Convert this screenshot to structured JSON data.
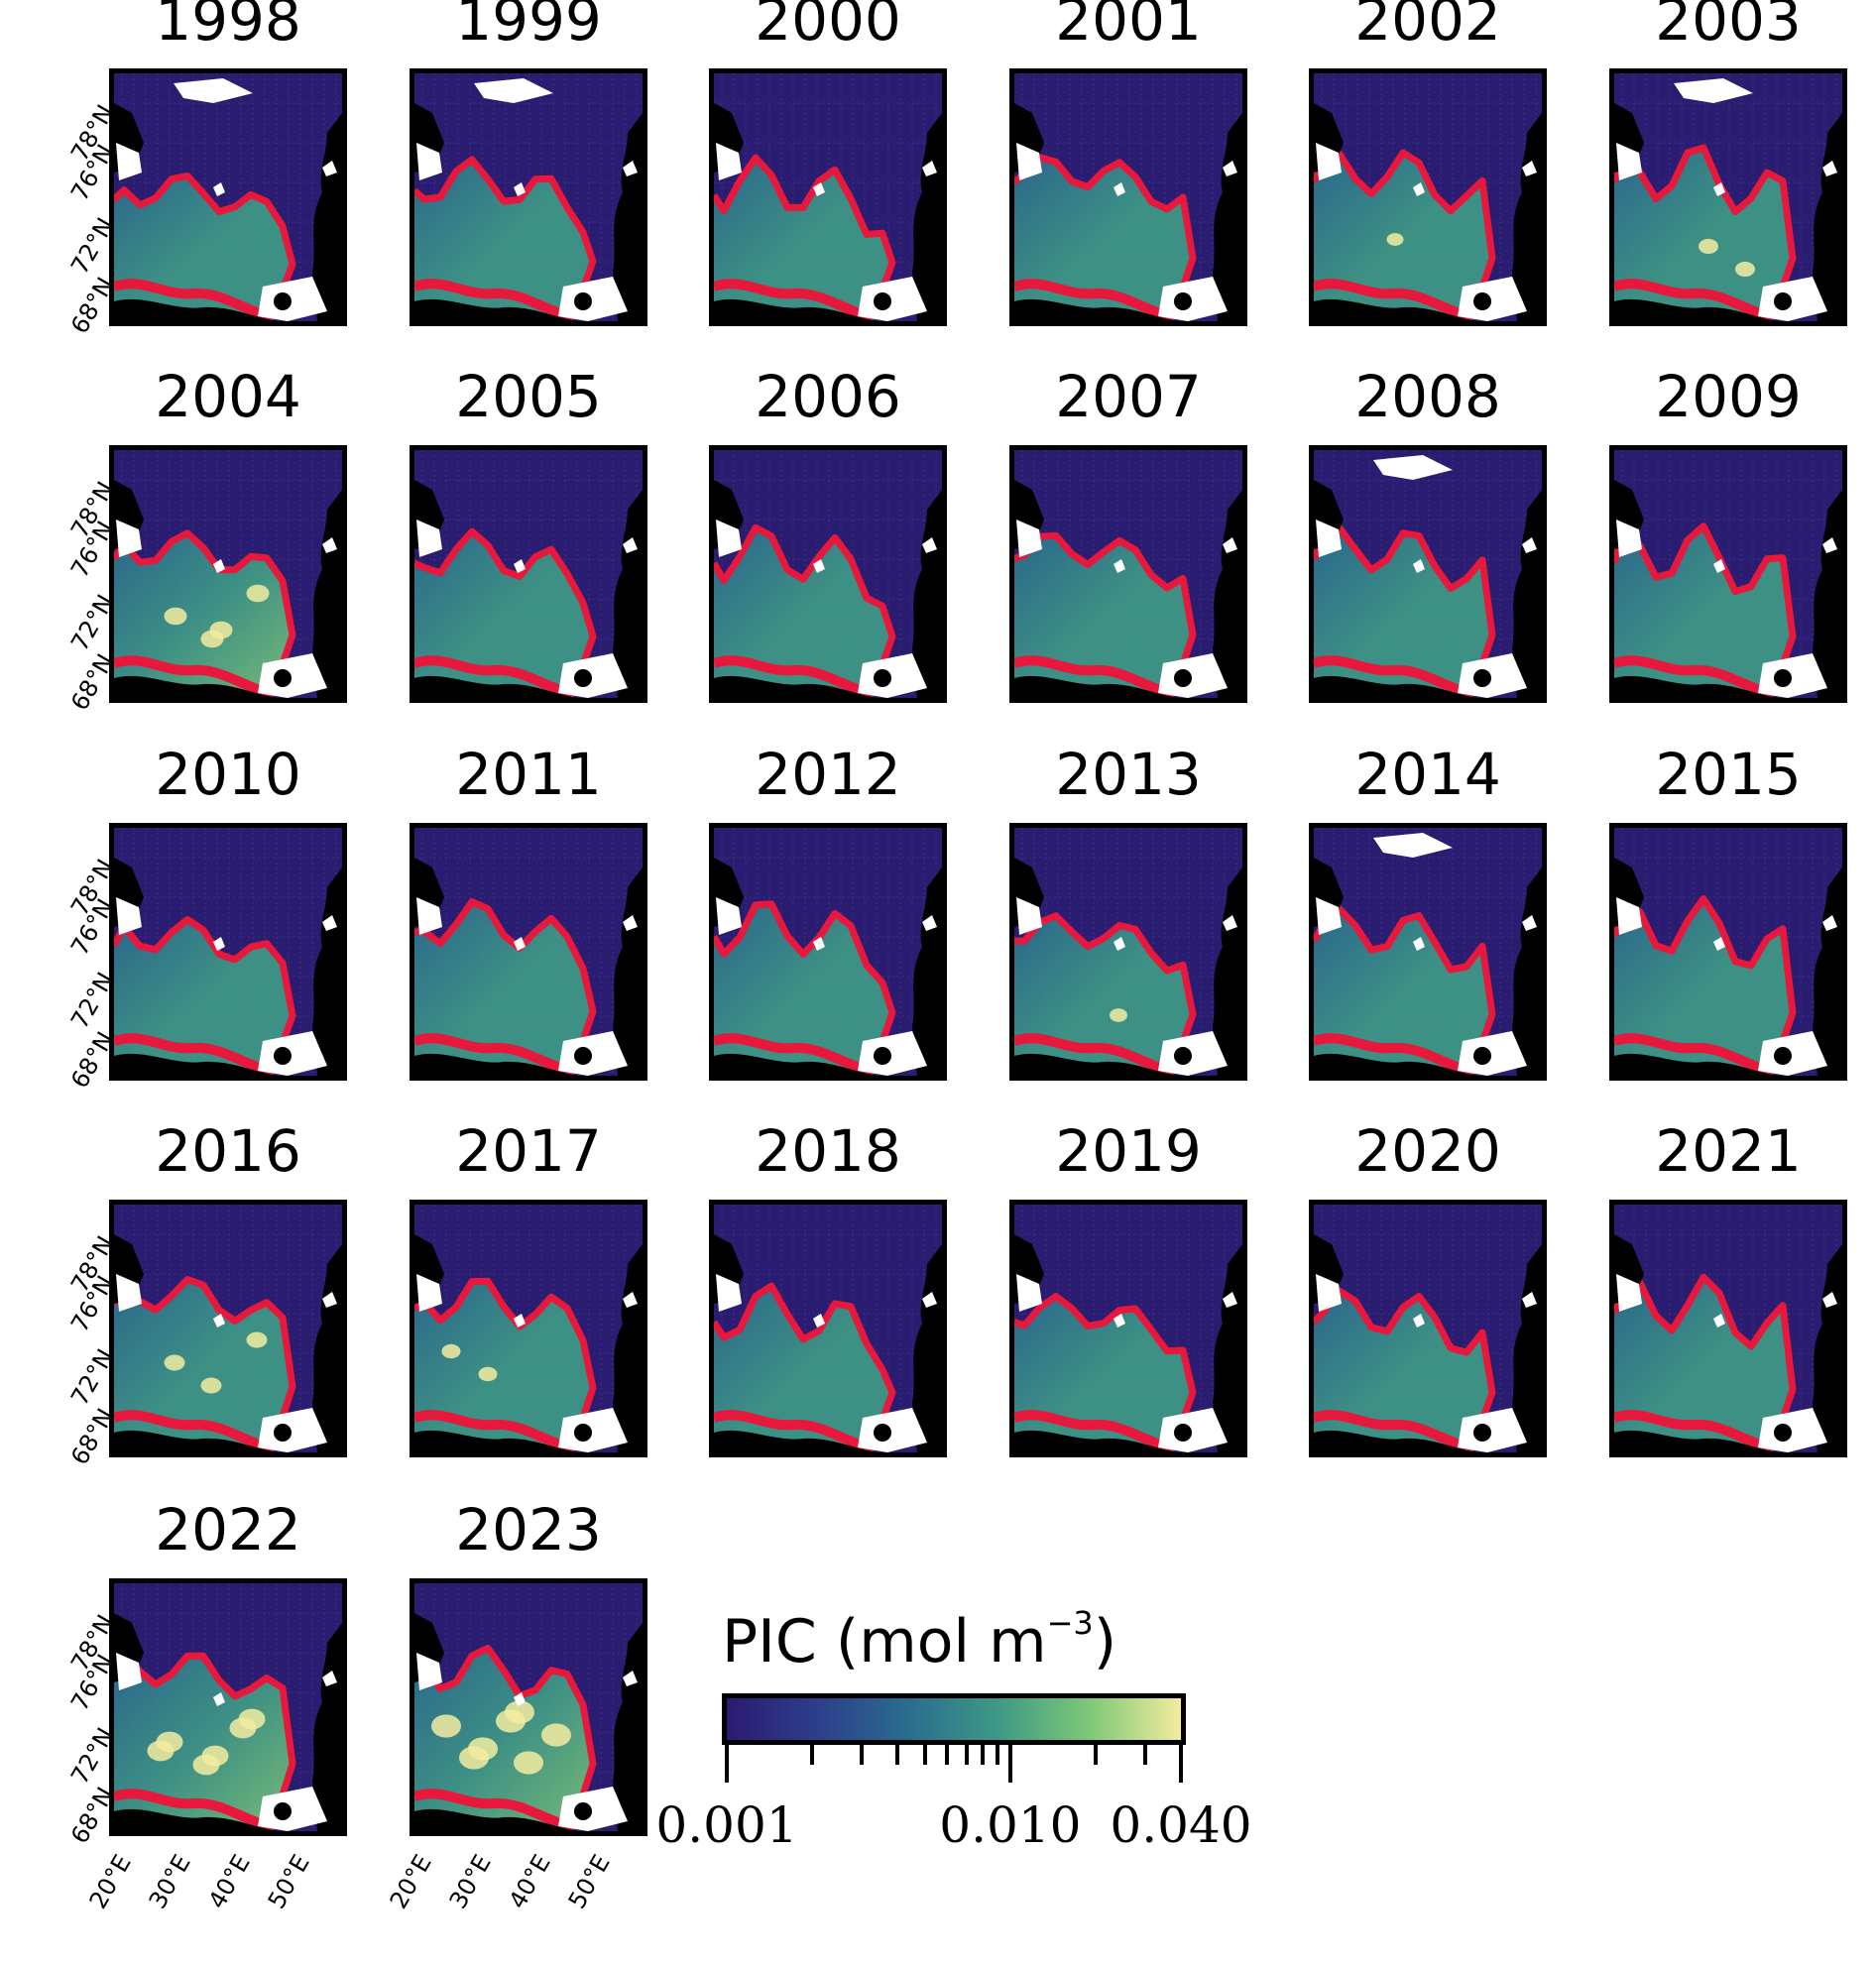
{
  "panels": [
    {
      "year": "1998",
      "bloom": 0.25,
      "bright": 0.0
    },
    {
      "year": "1999",
      "bloom": 0.35,
      "bright": 0.0
    },
    {
      "year": "2000",
      "bloom": 0.3,
      "bright": 0.0
    },
    {
      "year": "2001",
      "bloom": 0.45,
      "bright": 0.0
    },
    {
      "year": "2002",
      "bloom": 0.45,
      "bright": 0.05
    },
    {
      "year": "2003",
      "bloom": 0.45,
      "bright": 0.2
    },
    {
      "year": "2004",
      "bloom": 0.45,
      "bright": 0.35
    },
    {
      "year": "2005",
      "bloom": 0.4,
      "bright": 0.0
    },
    {
      "year": "2006",
      "bloom": 0.4,
      "bright": 0.0
    },
    {
      "year": "2007",
      "bloom": 0.45,
      "bright": 0.0
    },
    {
      "year": "2008",
      "bloom": 0.45,
      "bright": 0.0
    },
    {
      "year": "2009",
      "bloom": 0.4,
      "bright": 0.0
    },
    {
      "year": "2010",
      "bloom": 0.35,
      "bright": 0.0
    },
    {
      "year": "2011",
      "bloom": 0.5,
      "bright": 0.0
    },
    {
      "year": "2012",
      "bloom": 0.45,
      "bright": 0.0
    },
    {
      "year": "2013",
      "bloom": 0.4,
      "bright": 0.1
    },
    {
      "year": "2014",
      "bloom": 0.4,
      "bright": 0.0
    },
    {
      "year": "2015",
      "bloom": 0.45,
      "bright": 0.0
    },
    {
      "year": "2016",
      "bloom": 0.55,
      "bright": 0.25
    },
    {
      "year": "2017",
      "bloom": 0.5,
      "bright": 0.15
    },
    {
      "year": "2018",
      "bloom": 0.35,
      "bright": 0.0
    },
    {
      "year": "2019",
      "bloom": 0.35,
      "bright": 0.0
    },
    {
      "year": "2020",
      "bloom": 0.35,
      "bright": 0.0
    },
    {
      "year": "2021",
      "bloom": 0.45,
      "bright": 0.0
    },
    {
      "year": "2022",
      "bloom": 0.6,
      "bright": 0.55
    },
    {
      "year": "2023",
      "bloom": 0.6,
      "bright": 0.7
    }
  ],
  "lat_labels": [
    "78°N",
    "76°N",
    "72°N",
    "68°N"
  ],
  "lon_labels": [
    "20°E",
    "30°E",
    "40°E",
    "50°E"
  ],
  "colorbar": {
    "title": "PIC (mol m",
    "title_exp": "−3",
    "title_close": ")",
    "scale": "log",
    "min": 0.001,
    "max": 0.04,
    "tick_labels": [
      "0.001",
      "0.010",
      "0.040"
    ],
    "colors": [
      "#2b1a72",
      "#2c3f8c",
      "#2a6d8e",
      "#3f9a86",
      "#7ec877",
      "#f3eca0"
    ]
  },
  "colors": {
    "ocean_background": "#2a1c70",
    "contour": "#e8173c",
    "land": "#000000",
    "no_data": "#ffffff"
  }
}
